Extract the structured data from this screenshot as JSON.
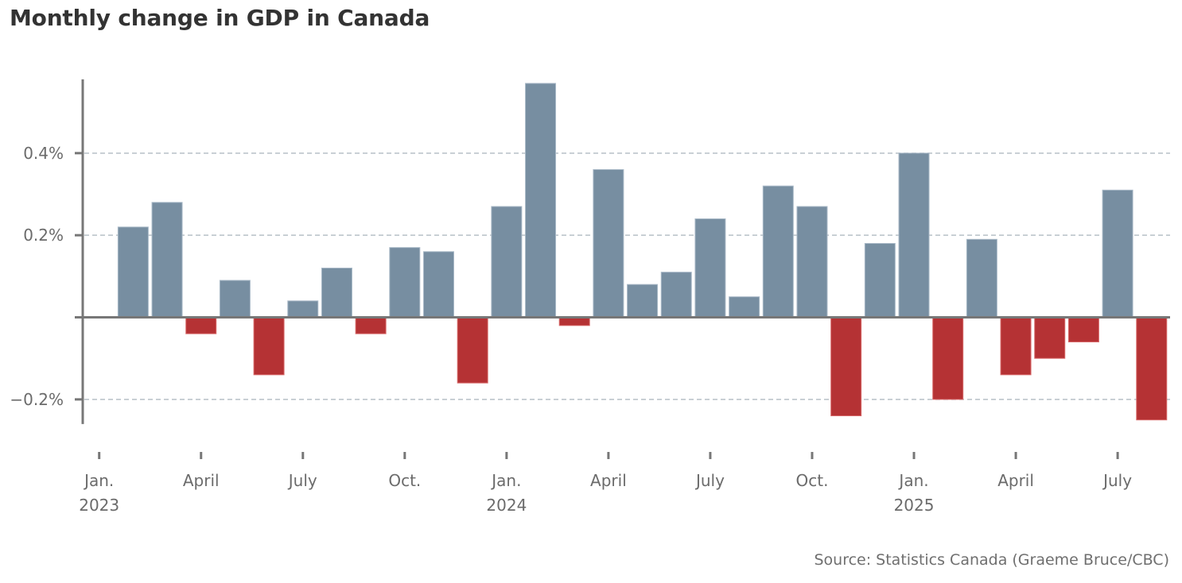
{
  "title": "Monthly change in GDP in Canada",
  "source": "Source: Statistics Canada (Graeme Bruce/CBC)",
  "colors": {
    "positive": "#778ea1",
    "positive_edge": "#a9b9c7",
    "negative": "#b53234",
    "negative_edge": "#d86a6a",
    "axis": "#777777",
    "grid": "#b8c0c7",
    "text": "#6b6b6b",
    "title": "#333333"
  },
  "chart_data": {
    "type": "bar",
    "title": "Monthly change in GDP in Canada",
    "xlabel": "",
    "ylabel": "",
    "ylim": [
      -0.26,
      0.58
    ],
    "grid": true,
    "legend": "none",
    "y_ticks": [
      {
        "value": 0.4,
        "label": "0.4%"
      },
      {
        "value": 0.2,
        "label": "0.2%"
      },
      {
        "value": -0.2,
        "label": "−0.2%"
      }
    ],
    "x_ticks": [
      {
        "index": 0,
        "label": "Jan.",
        "year": "2023"
      },
      {
        "index": 3,
        "label": "April",
        "year": ""
      },
      {
        "index": 6,
        "label": "July",
        "year": ""
      },
      {
        "index": 9,
        "label": "Oct.",
        "year": ""
      },
      {
        "index": 12,
        "label": "Jan.",
        "year": "2024"
      },
      {
        "index": 15,
        "label": "April",
        "year": ""
      },
      {
        "index": 18,
        "label": "July",
        "year": ""
      },
      {
        "index": 21,
        "label": "Oct.",
        "year": ""
      },
      {
        "index": 24,
        "label": "Jan.",
        "year": "2025"
      },
      {
        "index": 27,
        "label": "April",
        "year": ""
      },
      {
        "index": 30,
        "label": "July",
        "year": ""
      }
    ],
    "categories": [
      "2023-01",
      "2023-02",
      "2023-03",
      "2023-04",
      "2023-05",
      "2023-06",
      "2023-07",
      "2023-08",
      "2023-09",
      "2023-10",
      "2023-11",
      "2023-12",
      "2024-01",
      "2024-02",
      "2024-03",
      "2024-04",
      "2024-05",
      "2024-06",
      "2024-07",
      "2024-08",
      "2024-09",
      "2024-10",
      "2024-11",
      "2024-12",
      "2025-01",
      "2025-02",
      "2025-03",
      "2025-04",
      "2025-05",
      "2025-06",
      "2025-07",
      "2025-08"
    ],
    "series": [
      {
        "name": "Monthly change in GDP (%)",
        "values": [
          null,
          0.22,
          0.28,
          -0.04,
          0.09,
          -0.14,
          0.04,
          0.12,
          -0.04,
          0.17,
          0.16,
          -0.16,
          0.27,
          0.57,
          -0.02,
          0.36,
          0.08,
          0.11,
          0.24,
          0.05,
          0.32,
          0.27,
          -0.24,
          0.18,
          0.4,
          -0.2,
          0.19,
          -0.14,
          -0.1,
          -0.06,
          0.31,
          -0.25
        ]
      }
    ]
  }
}
